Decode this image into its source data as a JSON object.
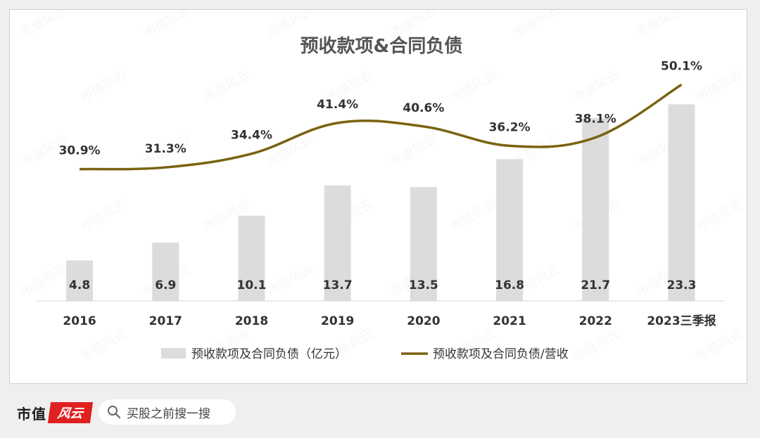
{
  "brand": {
    "name": "市值",
    "stamp": "风云"
  },
  "search": {
    "placeholder": "买股之前搜一搜"
  },
  "watermark": "市值风云",
  "colors": {
    "bar": "#dcdcdc",
    "line": "#7a6210",
    "title": "#555555",
    "text": "#333333",
    "axis": "#d6d6d6"
  },
  "chart_data": {
    "type": "bar",
    "title": "预收款项&合同负债",
    "categories": [
      "2016",
      "2017",
      "2018",
      "2019",
      "2020",
      "2021",
      "2022",
      "2023三季报"
    ],
    "series": [
      {
        "name": "预收款项及合同负债（亿元）",
        "type": "bar",
        "values": [
          4.8,
          6.9,
          10.1,
          13.7,
          13.5,
          16.8,
          21.7,
          23.3
        ]
      },
      {
        "name": "预收款项及合同负债/营收",
        "type": "line",
        "values": [
          30.9,
          31.3,
          34.4,
          41.4,
          40.6,
          36.2,
          38.1,
          50.1
        ],
        "labels": [
          "30.9%",
          "31.3%",
          "34.4%",
          "41.4%",
          "40.6%",
          "36.2%",
          "38.1%",
          "50.1%"
        ]
      }
    ],
    "legend_position": "bottom",
    "grid": false
  }
}
